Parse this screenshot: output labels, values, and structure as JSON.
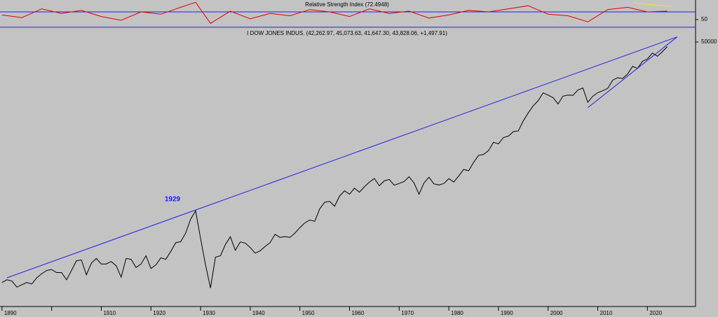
{
  "chart_data": [
    {
      "type": "line",
      "title": "Relative Strength Index (72.4948)",
      "x": [
        1890,
        1894,
        1898,
        1902,
        1906,
        1910,
        1914,
        1918,
        1922,
        1926,
        1929,
        1932,
        1936,
        1940,
        1944,
        1948,
        1952,
        1956,
        1960,
        1964,
        1968,
        1972,
        1976,
        1980,
        1984,
        1988,
        1992,
        1996,
        2000,
        2004,
        2008,
        2012,
        2016,
        2020,
        2024
      ],
      "series": [
        {
          "name": "RSI",
          "color": "#e00000",
          "values": [
            62,
            55,
            78,
            66,
            74,
            58,
            48,
            70,
            64,
            82,
            95,
            40,
            72,
            52,
            66,
            60,
            76,
            70,
            58,
            78,
            66,
            72,
            54,
            62,
            74,
            70,
            78,
            86,
            64,
            60,
            44,
            76,
            82,
            70,
            72
          ]
        }
      ],
      "hlines": [
        30,
        70
      ],
      "hline_color": "#2020e0",
      "trendlines": [
        {
          "x": [
            2017,
            2025
          ],
          "values": [
            93,
            84
          ],
          "color": "#f0e040"
        }
      ],
      "xlim": [
        1889.6,
        2029.7
      ],
      "ylim": [
        28,
        101
      ],
      "yticks": [
        50
      ]
    },
    {
      "type": "line",
      "title": "I DOW JONES INDUS. (42,262.97, 45,073.63, 41,647.30, 43,828.06, +1,497.91)",
      "annotation": "1929",
      "log_scale": true,
      "x": [
        1890,
        1891,
        1892,
        1893,
        1894,
        1895,
        1896,
        1897,
        1898,
        1899,
        1900,
        1901,
        1902,
        1903,
        1904,
        1905,
        1906,
        1907,
        1908,
        1909,
        1910,
        1911,
        1912,
        1913,
        1914,
        1915,
        1916,
        1917,
        1918,
        1919,
        1920,
        1921,
        1922,
        1923,
        1924,
        1925,
        1926,
        1927,
        1928,
        1929,
        1930,
        1931,
        1932,
        1933,
        1934,
        1935,
        1936,
        1937,
        1938,
        1939,
        1940,
        1941,
        1942,
        1943,
        1944,
        1945,
        1946,
        1947,
        1948,
        1949,
        1950,
        1951,
        1952,
        1953,
        1954,
        1955,
        1956,
        1957,
        1958,
        1959,
        1960,
        1961,
        1962,
        1963,
        1964,
        1965,
        1966,
        1967,
        1968,
        1969,
        1970,
        1971,
        1972,
        1973,
        1974,
        1975,
        1976,
        1977,
        1978,
        1979,
        1980,
        1981,
        1982,
        1983,
        1984,
        1985,
        1986,
        1987,
        1988,
        1989,
        1990,
        1991,
        1992,
        1993,
        1994,
        1995,
        1996,
        1997,
        1998,
        1999,
        2000,
        2001,
        2002,
        2003,
        2004,
        2005,
        2006,
        2007,
        2008,
        2009,
        2010,
        2011,
        2012,
        2013,
        2014,
        2015,
        2016,
        2017,
        2018,
        2019,
        2020,
        2021,
        2022,
        2023,
        2024
      ],
      "series": [
        {
          "name": "DOW JONES INDUS.",
          "color": "#000000",
          "values": [
            48,
            52,
            50,
            42,
            45,
            48,
            46,
            55,
            62,
            68,
            70,
            64,
            64,
            52,
            68,
            90,
            92,
            60,
            84,
            96,
            82,
            82,
            88,
            78,
            56,
            96,
            94,
            74,
            82,
            104,
            72,
            80,
            98,
            94,
            118,
            152,
            156,
            200,
            300,
            381,
            170,
            80,
            41,
            100,
            104,
            144,
            180,
            122,
            155,
            150,
            132,
            112,
            120,
            136,
            152,
            193,
            177,
            181,
            177,
            200,
            235,
            269,
            292,
            281,
            404,
            488,
            500,
            436,
            584,
            679,
            616,
            731,
            652,
            763,
            874,
            969,
            786,
            905,
            944,
            800,
            839,
            890,
            1020,
            851,
            616,
            852,
            1005,
            831,
            805,
            839,
            964,
            875,
            1047,
            1259,
            1212,
            1547,
            1896,
            1939,
            2169,
            2753,
            2634,
            3169,
            3301,
            3754,
            3834,
            5117,
            6448,
            7908,
            9181,
            11497,
            10787,
            10022,
            8342,
            10454,
            10783,
            10718,
            12463,
            13265,
            8776,
            10428,
            11578,
            12218,
            13104,
            16577,
            17823,
            17425,
            19763,
            24719,
            23327,
            28538,
            30606,
            36338,
            33147,
            37690,
            43828
          ]
        }
      ],
      "trendlines": [
        {
          "x": [
            1891,
            2026
          ],
          "values": [
            55,
            58000
          ],
          "color": "#2020e0"
        },
        {
          "x": [
            2008,
            2026
          ],
          "values": [
            7500,
            58000
          ],
          "color": "#2020e0"
        }
      ],
      "xlim": [
        1889.6,
        2029.7
      ],
      "ylim": [
        24,
        72000
      ],
      "yticks": [
        50000
      ],
      "xticks": [
        1890,
        1900,
        1910,
        1920,
        1930,
        1940,
        1950,
        1960,
        1970,
        1980,
        1990,
        2000,
        2010,
        2020
      ],
      "xticklabels_shown": [
        1890,
        1910,
        1920,
        1930,
        1940,
        1950,
        1960,
        1970,
        1980,
        1990,
        2000,
        2010,
        2020
      ]
    }
  ]
}
